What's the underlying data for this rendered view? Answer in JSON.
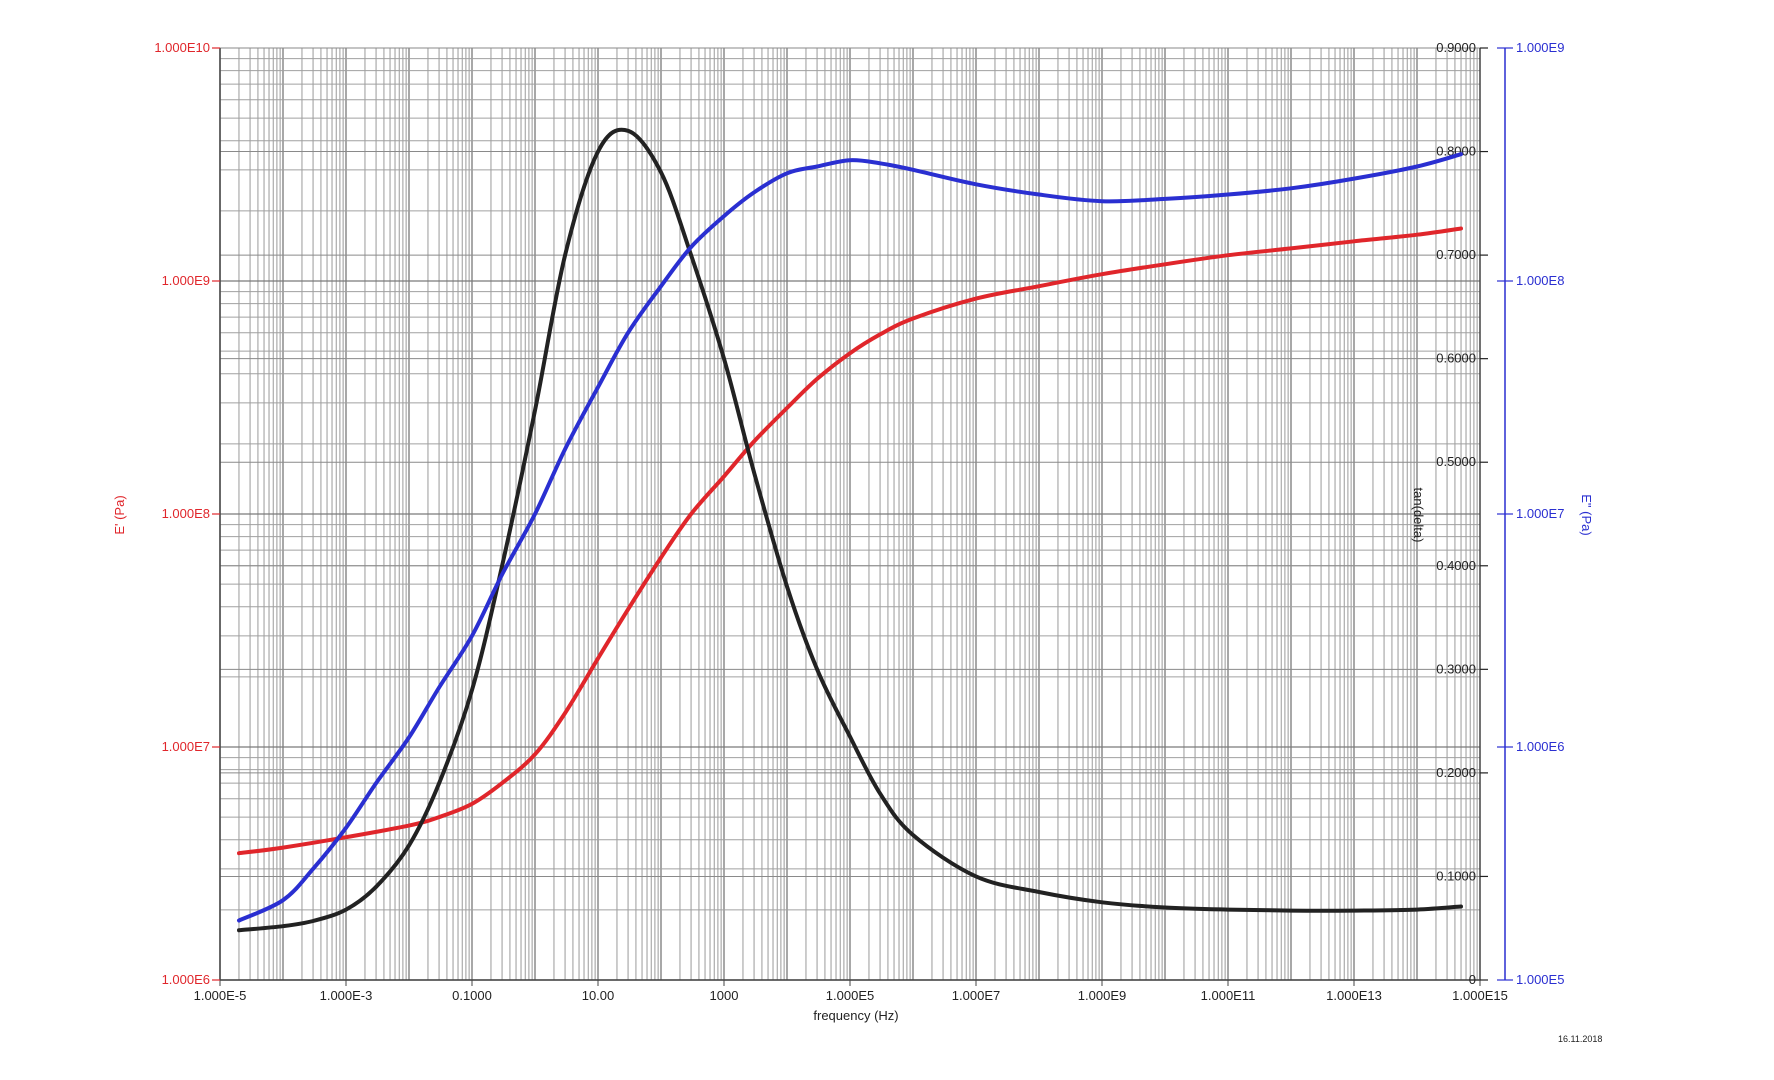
{
  "chart_data": {
    "type": "line",
    "xlabel": "frequency (Hz)",
    "x_scale": "log",
    "xlim": [
      1e-05,
      1000000000000000.0
    ],
    "x_ticks": [
      "1.000E-5",
      "1.000E-3",
      "0.1000",
      "10.00",
      "1000",
      "1.000E5",
      "1.000E7",
      "1.000E9",
      "1.000E11",
      "1.000E13",
      "1.000E15"
    ],
    "y_left": {
      "label": "E' (Pa)",
      "scale": "log",
      "lim": [
        1000000.0,
        10000000000.0
      ],
      "color": "#e0262b",
      "ticks": [
        "1.000E6",
        "1.000E7",
        "1.000E8",
        "1.000E9",
        "1.000E10"
      ]
    },
    "y_right_inner": {
      "label": "tan(delta)",
      "scale": "linear",
      "lim": [
        0,
        0.9
      ],
      "color": "#222222",
      "ticks": [
        "0",
        "0.1000",
        "0.2000",
        "0.3000",
        "0.4000",
        "0.5000",
        "0.6000",
        "0.7000",
        "0.8000",
        "0.9000"
      ]
    },
    "y_right_outer": {
      "label": "E\" (Pa)",
      "scale": "log",
      "lim": [
        100000.0,
        1000000000.0
      ],
      "color": "#2a2fd1",
      "ticks": [
        "1.000E5",
        "1.000E6",
        "1.000E7",
        "1.000E8",
        "1.000E9"
      ]
    },
    "grid": true,
    "series": [
      {
        "color": "#e0262b",
        "axis": "y_left",
        "x": [
          2e-05,
          0.0001,
          0.001,
          0.01,
          0.03,
          0.1,
          0.3,
          1,
          3,
          10,
          30,
          100,
          300,
          1000,
          3000,
          10000,
          30000,
          100000,
          300000,
          1000000,
          10000000,
          100000000,
          1000000000,
          10000000000,
          100000000000,
          1000000000000,
          10000000000000,
          100000000000000,
          500000000000000
        ],
        "y": [
          3500000.0,
          3700000.0,
          4100000.0,
          4600000.0,
          5000000.0,
          5700000.0,
          7000000.0,
          9300000.0,
          14000000.0,
          24000000.0,
          39000000.0,
          65000000.0,
          100000000.0,
          145000000.0,
          205000000.0,
          285000000.0,
          380000000.0,
          490000000.0,
          590000000.0,
          690000000.0,
          840000000.0,
          950000000.0,
          1070000000.0,
          1180000000.0,
          1290000000.0,
          1380000000.0,
          1480000000.0,
          1580000000.0,
          1680000000.0
        ]
      },
      {
        "color": "#222222",
        "axis": "y_right_inner",
        "x": [
          2e-05,
          0.0001,
          0.0003,
          0.001,
          0.003,
          0.01,
          0.03,
          0.1,
          0.3,
          1,
          3,
          10,
          30,
          100,
          300,
          1000,
          3000,
          10000,
          30000,
          100000,
          300000,
          1000000,
          10000000,
          100000000,
          1000000000,
          10000000000,
          100000000000,
          1000000000000,
          10000000000000,
          100000000000000,
          500000000000000
        ],
        "y": [
          0.048,
          0.052,
          0.057,
          0.068,
          0.09,
          0.13,
          0.19,
          0.28,
          0.4,
          0.55,
          0.7,
          0.8,
          0.82,
          0.78,
          0.7,
          0.6,
          0.49,
          0.38,
          0.3,
          0.235,
          0.18,
          0.14,
          0.1,
          0.085,
          0.075,
          0.07,
          0.068,
          0.067,
          0.067,
          0.068,
          0.071
        ]
      },
      {
        "color": "#2a2fd1",
        "axis": "y_right_outer",
        "x": [
          2e-05,
          0.0001,
          0.0003,
          0.001,
          0.003,
          0.01,
          0.03,
          0.1,
          0.3,
          1,
          3,
          10,
          30,
          100,
          300,
          1000,
          3000,
          10000,
          30000,
          100000,
          300000,
          1000000,
          10000000,
          100000000,
          1000000000,
          10000000000,
          100000000000,
          1000000000000,
          10000000000000,
          100000000000000,
          500000000000000
        ],
        "y": [
          180000.0,
          220000.0,
          300000.0,
          450000.0,
          700000.0,
          1100000.0,
          1800000.0,
          3000000.0,
          5500000.0,
          10000000.0,
          19000000.0,
          35000000.0,
          60000000.0,
          95000000.0,
          140000000.0,
          190000000.0,
          240000000.0,
          290000000.0,
          310000000.0,
          330000000.0,
          320000000.0,
          300000000.0,
          260000000.0,
          235000000.0,
          220000000.0,
          225000000.0,
          235000000.0,
          250000000.0,
          275000000.0,
          310000000.0,
          350000000.0
        ]
      }
    ]
  },
  "footer": {
    "date": "16.11.2018"
  }
}
